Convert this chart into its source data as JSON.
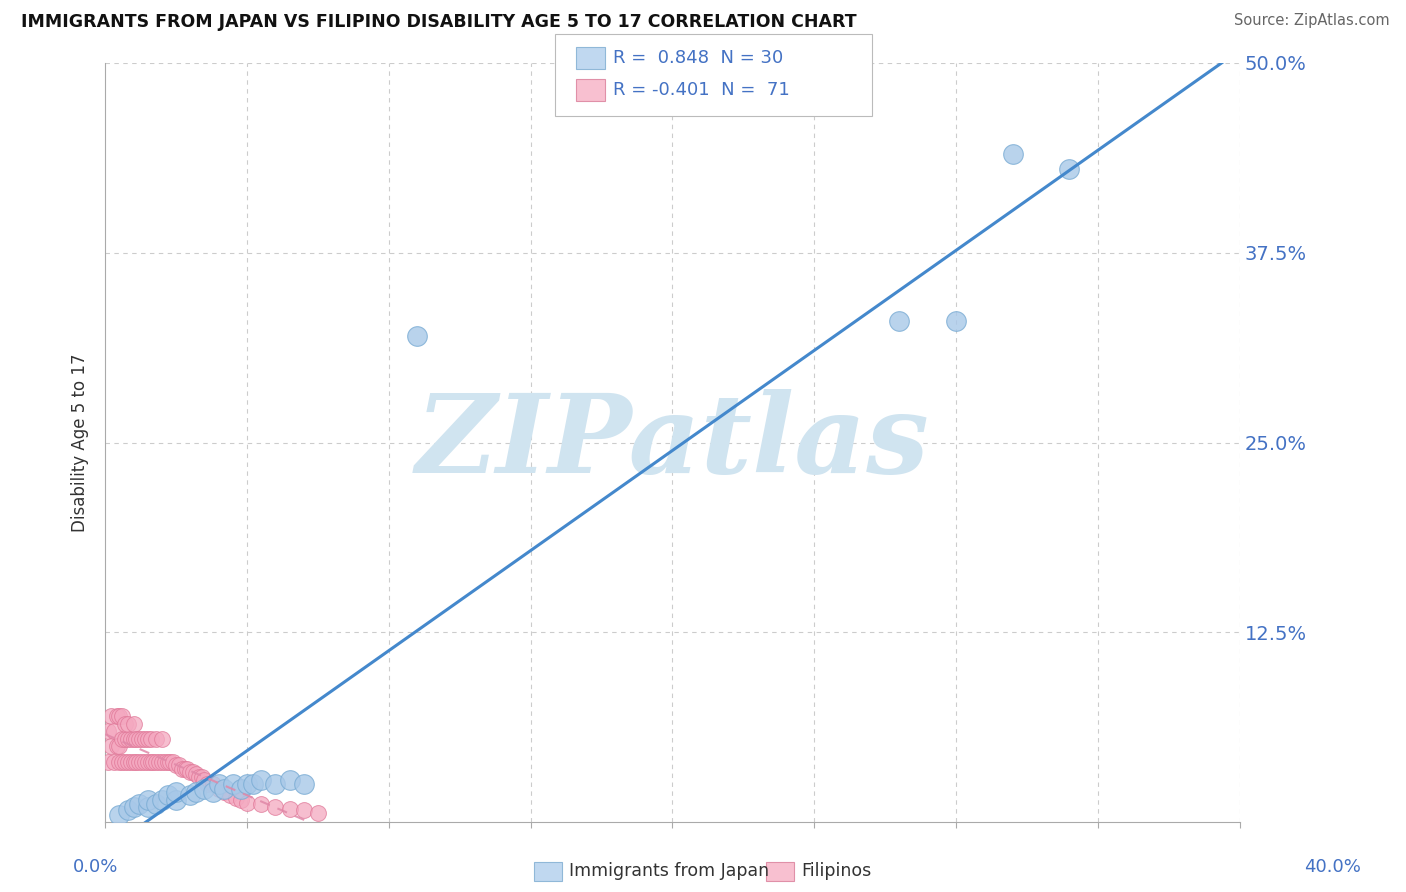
{
  "title": "IMMIGRANTS FROM JAPAN VS FILIPINO DISABILITY AGE 5 TO 17 CORRELATION CHART",
  "source": "Source: ZipAtlas.com",
  "ylabel": "Disability Age 5 to 17",
  "xlim": [
    0.0,
    0.4
  ],
  "ylim": [
    0.0,
    0.5
  ],
  "yticks": [
    0.0,
    0.125,
    0.25,
    0.375,
    0.5
  ],
  "ytick_labels": [
    "",
    "12.5%",
    "25.0%",
    "37.5%",
    "50.0%"
  ],
  "japan_color": "#a8c8e8",
  "japan_edge": "#7aacd4",
  "filipino_color": "#f4a8c0",
  "filipino_edge": "#e07898",
  "trend_japan_color": "#4488cc",
  "trend_filipino_color": "#e088a8",
  "watermark": "ZIPatlas",
  "watermark_color": "#d0e4f0",
  "background_color": "#ffffff",
  "grid_color": "#cccccc",
  "legend_blue_label": "R =  0.848  N = 30",
  "legend_pink_label": "R = -0.401  N =  71",
  "japan_x": [
    0.005,
    0.008,
    0.01,
    0.012,
    0.015,
    0.015,
    0.018,
    0.02,
    0.022,
    0.025,
    0.025,
    0.03,
    0.032,
    0.035,
    0.038,
    0.04,
    0.042,
    0.045,
    0.048,
    0.05,
    0.052,
    0.055,
    0.06,
    0.065,
    0.07,
    0.11,
    0.28,
    0.3,
    0.32,
    0.34
  ],
  "japan_y": [
    0.005,
    0.008,
    0.01,
    0.012,
    0.01,
    0.015,
    0.012,
    0.015,
    0.018,
    0.015,
    0.02,
    0.018,
    0.02,
    0.022,
    0.02,
    0.025,
    0.022,
    0.025,
    0.022,
    0.025,
    0.025,
    0.028,
    0.025,
    0.028,
    0.025,
    0.32,
    0.33,
    0.33,
    0.44,
    0.43
  ],
  "filipino_x": [
    0.001,
    0.001,
    0.002,
    0.002,
    0.003,
    0.003,
    0.004,
    0.004,
    0.005,
    0.005,
    0.005,
    0.006,
    0.006,
    0.006,
    0.007,
    0.007,
    0.007,
    0.008,
    0.008,
    0.008,
    0.009,
    0.009,
    0.01,
    0.01,
    0.01,
    0.011,
    0.011,
    0.012,
    0.012,
    0.013,
    0.013,
    0.014,
    0.014,
    0.015,
    0.015,
    0.016,
    0.016,
    0.017,
    0.018,
    0.018,
    0.019,
    0.02,
    0.02,
    0.021,
    0.022,
    0.023,
    0.024,
    0.025,
    0.026,
    0.027,
    0.028,
    0.029,
    0.03,
    0.031,
    0.032,
    0.033,
    0.034,
    0.035,
    0.036,
    0.038,
    0.04,
    0.042,
    0.044,
    0.046,
    0.048,
    0.05,
    0.055,
    0.06,
    0.065,
    0.07,
    0.075
  ],
  "filipino_y": [
    0.04,
    0.06,
    0.05,
    0.07,
    0.04,
    0.06,
    0.05,
    0.07,
    0.04,
    0.05,
    0.07,
    0.04,
    0.055,
    0.07,
    0.04,
    0.055,
    0.065,
    0.04,
    0.055,
    0.065,
    0.04,
    0.055,
    0.04,
    0.055,
    0.065,
    0.04,
    0.055,
    0.04,
    0.055,
    0.04,
    0.055,
    0.04,
    0.055,
    0.04,
    0.055,
    0.04,
    0.055,
    0.04,
    0.04,
    0.055,
    0.04,
    0.04,
    0.055,
    0.04,
    0.04,
    0.04,
    0.04,
    0.038,
    0.038,
    0.035,
    0.035,
    0.035,
    0.033,
    0.033,
    0.032,
    0.03,
    0.03,
    0.028,
    0.025,
    0.025,
    0.022,
    0.02,
    0.018,
    0.016,
    0.015,
    0.013,
    0.012,
    0.01,
    0.009,
    0.008,
    0.006
  ]
}
